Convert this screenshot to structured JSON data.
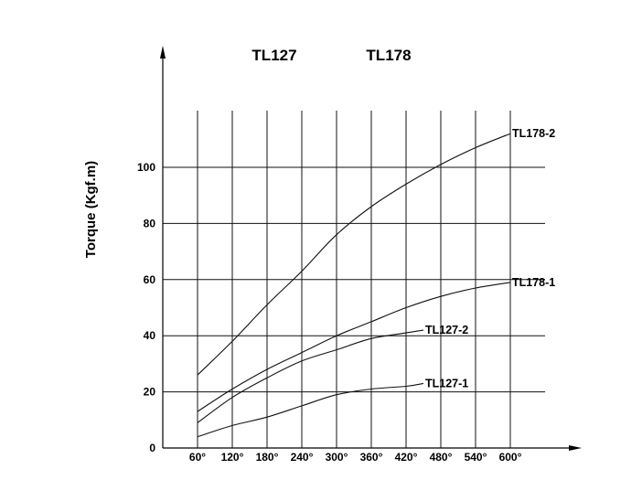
{
  "chart_data": {
    "type": "line",
    "titles": [
      "TL127",
      "TL178"
    ],
    "xlabel": "",
    "ylabel": "Torque  (Kgf.m)",
    "x": [
      "60°",
      "120°",
      "180°",
      "240°",
      "300°",
      "360°",
      "420°",
      "480°",
      "540°",
      "600°"
    ],
    "y_ticks": [
      "0",
      "20",
      "40",
      "60",
      "80",
      "100"
    ],
    "ylim": [
      0,
      120
    ],
    "grid": true,
    "series": [
      {
        "name": "TL178-2",
        "points": [
          [
            60,
            26
          ],
          [
            120,
            38
          ],
          [
            180,
            51
          ],
          [
            240,
            63
          ],
          [
            300,
            76
          ],
          [
            360,
            86
          ],
          [
            420,
            94
          ],
          [
            480,
            101
          ],
          [
            540,
            107
          ],
          [
            600,
            112
          ]
        ]
      },
      {
        "name": "TL178-1",
        "points": [
          [
            60,
            13
          ],
          [
            120,
            21
          ],
          [
            180,
            28
          ],
          [
            240,
            34
          ],
          [
            300,
            40
          ],
          [
            360,
            45
          ],
          [
            420,
            50
          ],
          [
            480,
            54
          ],
          [
            540,
            57
          ],
          [
            600,
            59
          ]
        ]
      },
      {
        "name": "TL127-2",
        "points": [
          [
            60,
            9
          ],
          [
            120,
            18
          ],
          [
            180,
            25
          ],
          [
            240,
            31
          ],
          [
            300,
            35
          ],
          [
            360,
            39
          ],
          [
            420,
            41
          ],
          [
            450,
            42
          ]
        ]
      },
      {
        "name": "TL127-1",
        "points": [
          [
            60,
            4
          ],
          [
            120,
            8
          ],
          [
            180,
            11
          ],
          [
            240,
            15
          ],
          [
            300,
            19
          ],
          [
            360,
            21
          ],
          [
            420,
            22
          ],
          [
            450,
            23
          ]
        ]
      }
    ]
  }
}
